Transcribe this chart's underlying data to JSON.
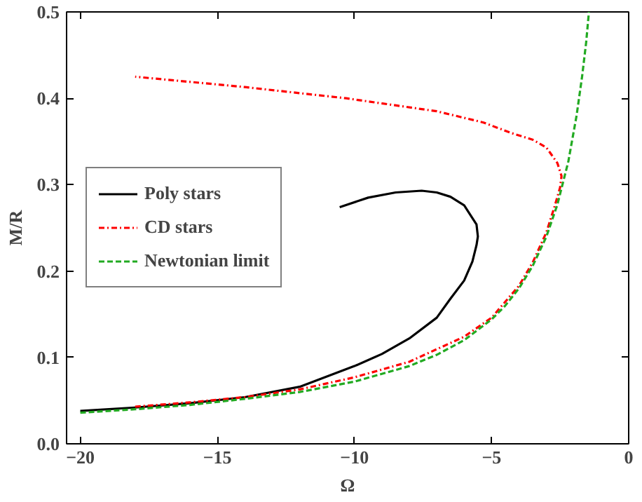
{
  "chart_data": {
    "type": "line",
    "xlabel": "Ω",
    "ylabel": "M/R",
    "xlim": [
      -20.5,
      0
    ],
    "ylim": [
      0,
      0.5
    ],
    "xticks": [
      {
        "value": -20,
        "label": "−20"
      },
      {
        "value": -15,
        "label": "−15"
      },
      {
        "value": -10,
        "label": "−10"
      },
      {
        "value": -5,
        "label": "−5"
      },
      0
    ],
    "yticks": [
      {
        "value": 0,
        "label": "0.0"
      },
      0.1,
      0.2,
      0.3,
      0.4,
      0.5
    ],
    "grid": false,
    "legend": "left",
    "marker": "none",
    "series": [
      {
        "name": "Poly stars",
        "color": "#000000",
        "line_style": "solid",
        "x": [
          -20,
          -18,
          -16,
          -14,
          -12,
          -10,
          -9,
          -8,
          -7,
          -6.5,
          -6,
          -5.7,
          -5.55,
          -5.5,
          -5.55,
          -6.0,
          -6.5,
          -7.0,
          -7.55,
          -8.5,
          -9.5,
          -10.54
        ],
        "values": [
          0.038,
          0.042,
          0.047,
          0.054,
          0.066,
          0.09,
          0.104,
          0.122,
          0.146,
          0.168,
          0.189,
          0.211,
          0.23,
          0.24,
          0.254,
          0.276,
          0.286,
          0.291,
          0.293,
          0.291,
          0.285,
          0.274
        ]
      },
      {
        "name": "CD stars",
        "color": "#ff0000",
        "line_style": "dashdot",
        "x": [
          -18,
          -16,
          -14,
          -12,
          -10,
          -8,
          -6,
          -5,
          -4,
          -3.5,
          -3,
          -2.7,
          -2.5,
          -2.45,
          -2.6,
          -3.0,
          -3.5,
          -4.3,
          -5.3,
          -7,
          -10.3,
          -14,
          -18
        ],
        "values": [
          0.043,
          0.048,
          0.054,
          0.063,
          0.077,
          0.095,
          0.124,
          0.146,
          0.183,
          0.21,
          0.245,
          0.275,
          0.297,
          0.31,
          0.325,
          0.343,
          0.352,
          0.36,
          0.372,
          0.385,
          0.4,
          0.413,
          0.425
        ]
      },
      {
        "name": "Newtonian limit",
        "color": "#22aa22",
        "line_style": "dashed",
        "x": [
          -20,
          -18,
          -16,
          -14,
          -12,
          -10,
          -8,
          -7,
          -6,
          -5,
          -4.5,
          -4,
          -3.5,
          -3,
          -2.6,
          -2.2,
          -1.9,
          -1.7,
          -1.55,
          -1.45
        ],
        "values": [
          0.036,
          0.04,
          0.045,
          0.052,
          0.06,
          0.072,
          0.09,
          0.103,
          0.12,
          0.144,
          0.16,
          0.18,
          0.206,
          0.24,
          0.277,
          0.327,
          0.38,
          0.425,
          0.465,
          0.5
        ]
      }
    ]
  }
}
